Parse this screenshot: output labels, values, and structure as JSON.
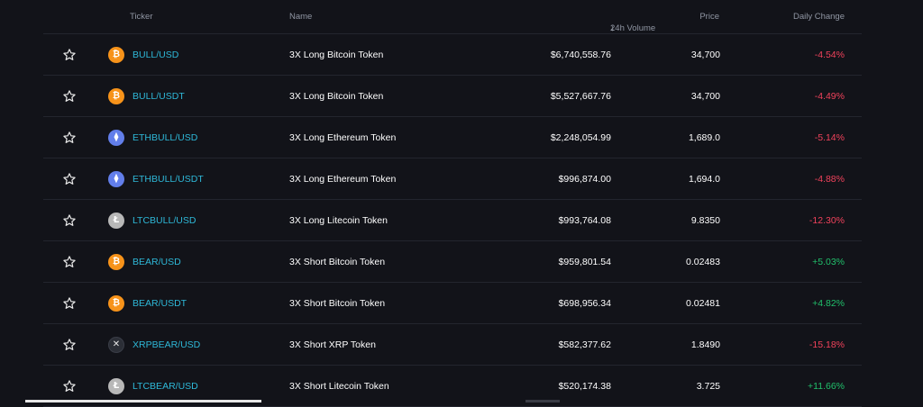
{
  "header": {
    "ticker": "Ticker",
    "name": "Name",
    "volume": "24h Volume",
    "price": "Price",
    "change": "Daily Change"
  },
  "colors": {
    "ticker_link": "#2eb8d8",
    "negative": "#f0425b",
    "positive": "#21c06b",
    "background": "#121319"
  },
  "rows": [
    {
      "icon": "bitcoin-icon",
      "ticker": "BULL/USD",
      "name": "3X Long Bitcoin Token",
      "volume": "$6,740,558.76",
      "price": "34,700",
      "change": "-4.54%"
    },
    {
      "icon": "bitcoin-icon",
      "ticker": "BULL/USDT",
      "name": "3X Long Bitcoin Token",
      "volume": "$5,527,667.76",
      "price": "34,700",
      "change": "-4.49%"
    },
    {
      "icon": "ethereum-icon",
      "ticker": "ETHBULL/USD",
      "name": "3X Long Ethereum Token",
      "volume": "$2,248,054.99",
      "price": "1,689.0",
      "change": "-5.14%"
    },
    {
      "icon": "ethereum-icon",
      "ticker": "ETHBULL/USDT",
      "name": "3X Long Ethereum Token",
      "volume": "$996,874.00",
      "price": "1,694.0",
      "change": "-4.88%"
    },
    {
      "icon": "litecoin-icon",
      "ticker": "LTCBULL/USD",
      "name": "3X Long Litecoin Token",
      "volume": "$993,764.08",
      "price": "9.8350",
      "change": "-12.30%"
    },
    {
      "icon": "bitcoin-icon",
      "ticker": "BEAR/USD",
      "name": "3X Short Bitcoin Token",
      "volume": "$959,801.54",
      "price": "0.02483",
      "change": "+5.03%"
    },
    {
      "icon": "bitcoin-icon",
      "ticker": "BEAR/USDT",
      "name": "3X Short Bitcoin Token",
      "volume": "$698,956.34",
      "price": "0.02481",
      "change": "+4.82%"
    },
    {
      "icon": "xrp-icon",
      "ticker": "XRPBEAR/USD",
      "name": "3X Short XRP Token",
      "volume": "$582,377.62",
      "price": "1.8490",
      "change": "-15.18%"
    },
    {
      "icon": "litecoin-icon",
      "ticker": "LTCBEAR/USD",
      "name": "3X Short Litecoin Token",
      "volume": "$520,174.38",
      "price": "3.725",
      "change": "+11.66%"
    }
  ]
}
